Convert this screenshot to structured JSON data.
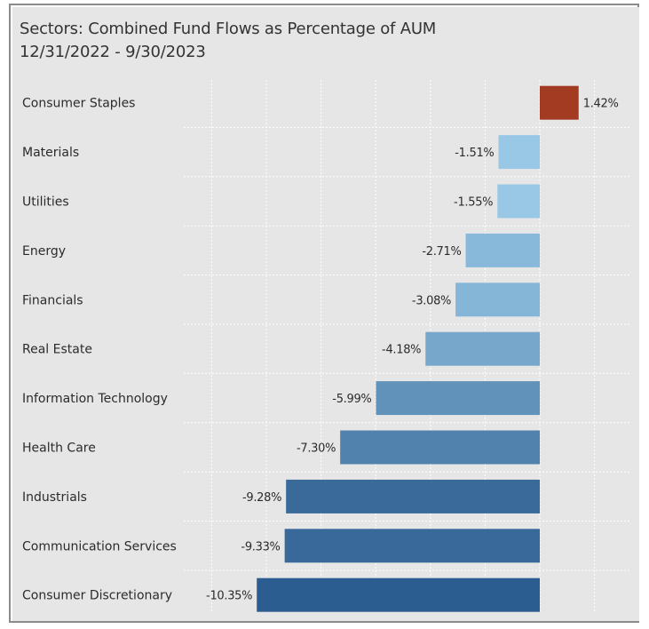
{
  "chart_data": {
    "type": "bar",
    "orientation": "horizontal",
    "title": "Sectors:  Combined Fund Flows as Percentage of AUM",
    "subtitle": "12/31/2022 - 9/30/2023",
    "categories": [
      "Consumer Staples",
      "Materials",
      "Utilities",
      "Energy",
      "Financials",
      "Real Estate",
      "Information Technology",
      "Health Care",
      "Industrials",
      "Communication Services",
      "Consumer Discretionary"
    ],
    "values": [
      1.42,
      -1.51,
      -1.55,
      -2.71,
      -3.08,
      -4.18,
      -5.99,
      -7.3,
      -9.28,
      -9.33,
      -10.35
    ],
    "value_labels": [
      "1.42%",
      "-1.51%",
      "-1.55%",
      "-2.71%",
      "-3.08%",
      "-4.18%",
      "-5.99%",
      "-7.30%",
      "-9.28%",
      "-9.33%",
      "-10.35%"
    ],
    "xlim": [
      -12,
      2
    ],
    "grid": true,
    "colors": {
      "positive": "#a33a22",
      "negative_light": "#98c8e6",
      "negative_dark": "#2c5d90"
    }
  }
}
